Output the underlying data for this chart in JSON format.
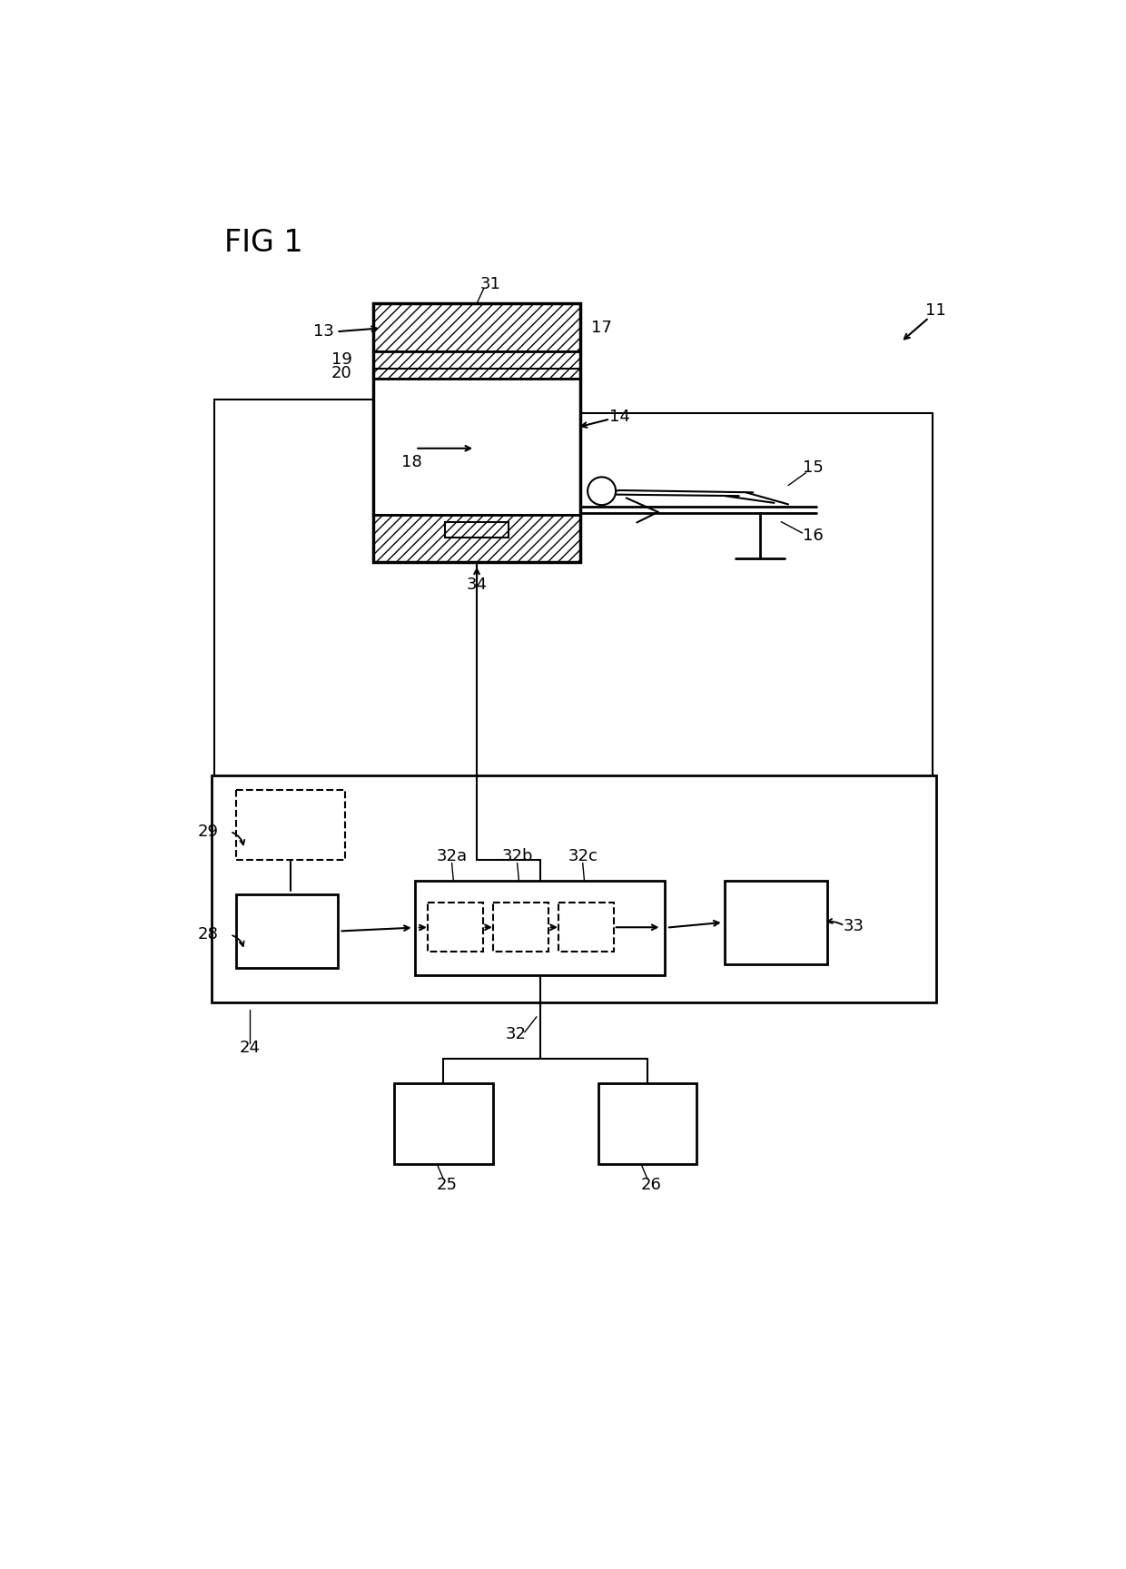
{
  "bg_color": "#ffffff",
  "line_color": "#000000",
  "fig_label": "FIG 1",
  "ref_num_11": "11",
  "ref_num_13": "13",
  "ref_num_14": "14",
  "ref_num_15": "15",
  "ref_num_16": "16",
  "ref_num_17": "17",
  "ref_num_18": "18",
  "ref_num_19": "19",
  "ref_num_20": "20",
  "ref_num_24": "24",
  "ref_num_25": "25",
  "ref_num_26": "26",
  "ref_num_28": "28",
  "ref_num_29": "29",
  "ref_num_31": "31",
  "ref_num_32": "32",
  "ref_num_32a": "32a",
  "ref_num_32b": "32b",
  "ref_num_32c": "32c",
  "ref_num_33": "33",
  "ref_num_34": "34"
}
